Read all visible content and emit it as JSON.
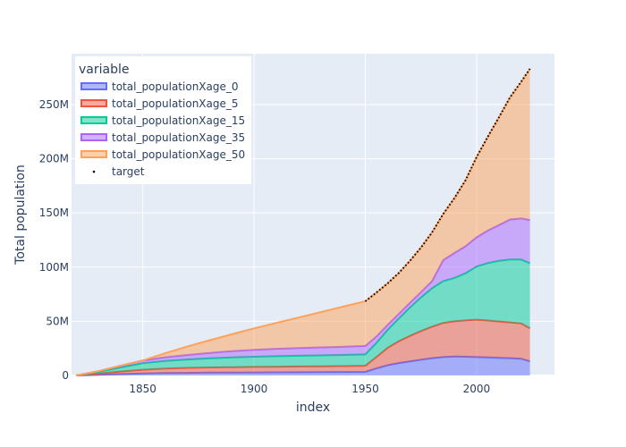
{
  "chart_data": {
    "type": "area",
    "xlabel": "index",
    "ylabel": "Total population",
    "x_ticks": [
      {
        "value": 1850,
        "label": "1850"
      },
      {
        "value": 1900,
        "label": "1900"
      },
      {
        "value": 1950,
        "label": "1950"
      },
      {
        "value": 2000,
        "label": "2000"
      }
    ],
    "y_ticks": [
      {
        "value": 0,
        "label": "0"
      },
      {
        "value": 50000000,
        "label": "50M"
      },
      {
        "value": 100000000,
        "label": "100M"
      },
      {
        "value": 150000000,
        "label": "150M"
      },
      {
        "value": 200000000,
        "label": "200M"
      },
      {
        "value": 250000000,
        "label": "250M"
      }
    ],
    "xlim": [
      1818,
      2035
    ],
    "ylim": [
      0,
      297000000
    ],
    "grid": true,
    "stacked": true,
    "background_color": "#e5ecf6",
    "legend": {
      "title": "variable",
      "placement": "top-left"
    },
    "x": [
      1820,
      1830,
      1840,
      1850,
      1860,
      1870,
      1880,
      1890,
      1900,
      1910,
      1920,
      1930,
      1940,
      1950,
      1955,
      1960,
      1965,
      1970,
      1975,
      1980,
      1985,
      1990,
      1995,
      2000,
      2005,
      2010,
      2015,
      2020,
      2024
    ],
    "series": [
      {
        "name": "total_populationXage_0",
        "color": "#636efa",
        "values": [
          0,
          700000,
          1300000,
          1900000,
          2200000,
          2400000,
          2600000,
          2700000,
          2800000,
          2900000,
          3000000,
          3100000,
          3200000,
          3300000,
          6500000,
          9500000,
          11500000,
          13000000,
          14500000,
          16000000,
          17000000,
          17500000,
          17300000,
          17000000,
          16700000,
          16300000,
          16000000,
          15500000,
          13000000
        ]
      },
      {
        "name": "total_populationXage_5",
        "color": "#ef553b",
        "values": [
          0,
          1000000,
          2300000,
          3400000,
          4200000,
          4600000,
          4800000,
          5000000,
          5100000,
          5200000,
          5300000,
          5400000,
          5500000,
          5700000,
          10500000,
          16000000,
          20000000,
          23500000,
          26500000,
          29000000,
          31500000,
          32500000,
          33500000,
          34500000,
          34000000,
          33500000,
          33000000,
          32500000,
          30500000
        ]
      },
      {
        "name": "total_populationXage_15",
        "color": "#00cc96",
        "values": [
          0,
          1600000,
          3800000,
          6000000,
          7000000,
          7800000,
          8500000,
          9000000,
          9400000,
          9700000,
          9900000,
          10100000,
          10300000,
          10500000,
          13000000,
          16500000,
          21000000,
          26000000,
          31000000,
          35500000,
          38500000,
          40000000,
          43500000,
          49000000,
          53000000,
          56000000,
          58000000,
          59000000,
          60000000
        ]
      },
      {
        "name": "total_populationXage_35",
        "color": "#ab63fa",
        "values": [
          0,
          700000,
          1600000,
          2600000,
          3400000,
          4200000,
          5000000,
          5800000,
          6400000,
          6900000,
          7200000,
          7400000,
          7600000,
          7800000,
          6000000,
          4700000,
          4300000,
          4500000,
          5000000,
          6500000,
          19500000,
          23000000,
          25000000,
          27000000,
          30000000,
          33000000,
          37000000,
          38000000,
          40000000
        ]
      },
      {
        "name": "total_populationXage_50",
        "color": "#ffa15a",
        "values": [
          0,
          0,
          0,
          0,
          3700000,
          7700000,
          11600000,
          15500000,
          19800000,
          23800000,
          28100000,
          32500000,
          36900000,
          41200000,
          40500000,
          38300000,
          37700000,
          38600000,
          41000000,
          45000000,
          42500000,
          50500000,
          60700000,
          74000000,
          86300000,
          99200000,
          112500000,
          125500000,
          139500000
        ]
      }
    ],
    "target": {
      "name": "target",
      "color": "#000000",
      "x": [
        1950,
        1955,
        1960,
        1965,
        1970,
        1975,
        1980,
        1985,
        1990,
        1995,
        2000,
        2005,
        2010,
        2015,
        2020,
        2024
      ],
      "values": [
        68500000,
        76500000,
        85000000,
        94500000,
        105600000,
        118000000,
        132000000,
        149000000,
        163500000,
        180000000,
        201500000,
        220000000,
        238000000,
        256500000,
        271000000,
        283000000
      ]
    }
  }
}
